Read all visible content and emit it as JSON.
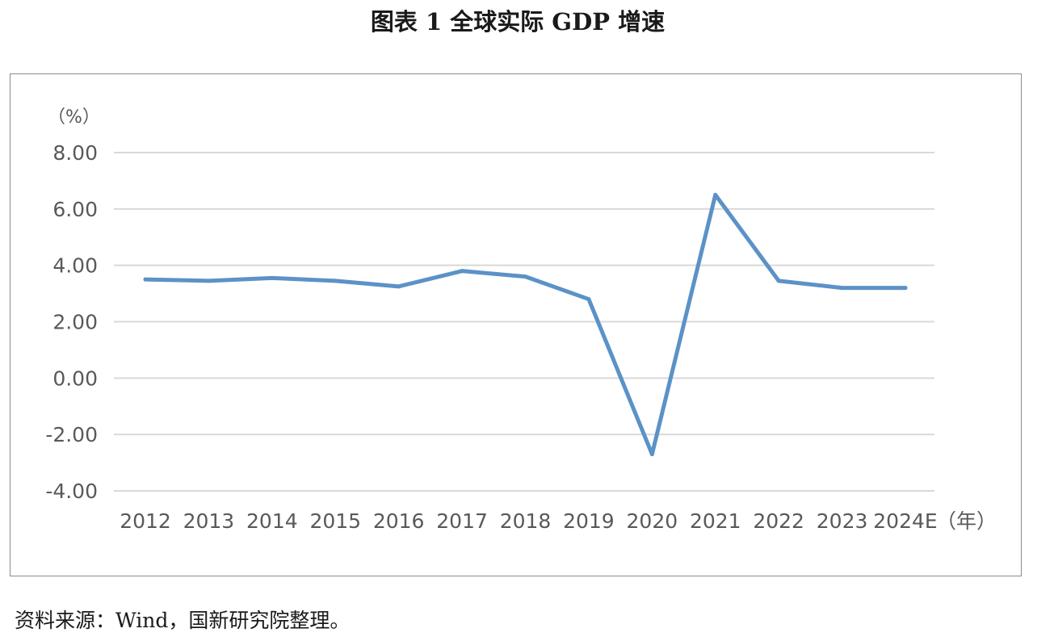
{
  "title": "图表 1  全球实际 GDP 增速",
  "source": "资料来源：Wind，国新研究院整理。",
  "chart_data": {
    "type": "line",
    "title": "图表 1  全球实际 GDP 增速",
    "ylabel": "（%）",
    "xlabel": "（年）",
    "ylim": [
      -4,
      8
    ],
    "yticks": [
      8,
      6,
      4,
      2,
      0,
      -2,
      -4
    ],
    "ytick_labels": [
      "8.00",
      "6.00",
      "4.00",
      "2.00",
      "0.00",
      "-2.00",
      "-4.00"
    ],
    "grid": true,
    "legend": "none",
    "categories": [
      "2012",
      "2013",
      "2014",
      "2015",
      "2016",
      "2017",
      "2018",
      "2019",
      "2020",
      "2021",
      "2022",
      "2023",
      "2024E"
    ],
    "series": [
      {
        "values": [
          3.5,
          3.45,
          3.55,
          3.45,
          3.25,
          3.8,
          3.6,
          2.8,
          -2.7,
          6.5,
          3.45,
          3.2,
          3.2
        ],
        "color": "#5b92c7"
      }
    ],
    "grid_color": "#d9d9d9"
  }
}
